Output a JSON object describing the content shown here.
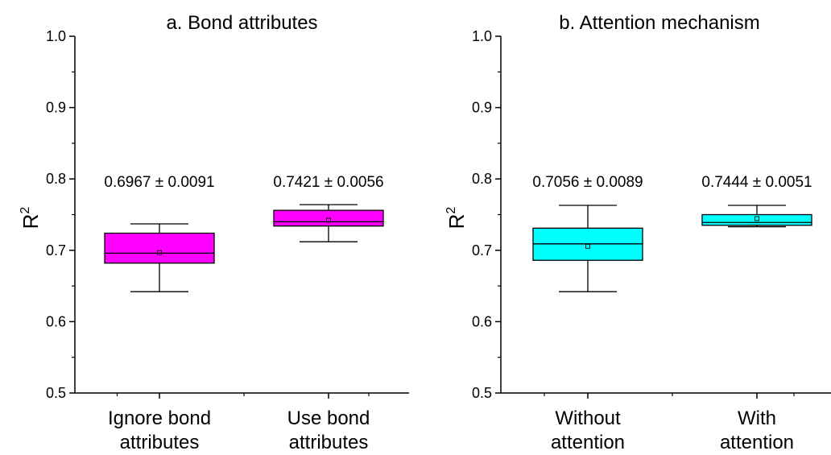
{
  "chart_data": [
    {
      "type": "box",
      "title": "a. Bond attributes",
      "ylabel": "R",
      "ylabel_sup": "2",
      "ylim": [
        0.5,
        1.0
      ],
      "yticks": [
        "0.5",
        "0.6",
        "0.7",
        "0.8",
        "0.9",
        "1.0"
      ],
      "categories": [
        {
          "lines": [
            "Ignore bond",
            "attributes"
          ]
        },
        {
          "lines": [
            "Use bond",
            "attributes"
          ]
        }
      ],
      "boxes": [
        {
          "min": 0.642,
          "q1": 0.682,
          "median": 0.696,
          "q3": 0.724,
          "max": 0.737,
          "mean": 0.6967,
          "label": "0.6967 ± 0.0091"
        },
        {
          "min": 0.712,
          "q1": 0.734,
          "median": 0.74,
          "q3": 0.756,
          "max": 0.764,
          "mean": 0.7421,
          "label": "0.7421 ± 0.0056"
        }
      ],
      "fill_color": "#ff00ff"
    },
    {
      "type": "box",
      "title": "b. Attention mechanism",
      "ylabel": "R",
      "ylabel_sup": "2",
      "ylim": [
        0.5,
        1.0
      ],
      "yticks": [
        "0.5",
        "0.6",
        "0.7",
        "0.8",
        "0.9",
        "1.0"
      ],
      "categories": [
        {
          "lines": [
            "Without",
            "attention"
          ]
        },
        {
          "lines": [
            "With",
            "attention"
          ]
        }
      ],
      "boxes": [
        {
          "min": 0.642,
          "q1": 0.686,
          "median": 0.709,
          "q3": 0.731,
          "max": 0.763,
          "mean": 0.7056,
          "label": "0.7056 ± 0.0089"
        },
        {
          "min": 0.733,
          "q1": 0.735,
          "median": 0.739,
          "q3": 0.75,
          "max": 0.763,
          "mean": 0.7444,
          "label": "0.7444 ± 0.0051"
        }
      ],
      "fill_color": "#00ffff"
    }
  ]
}
